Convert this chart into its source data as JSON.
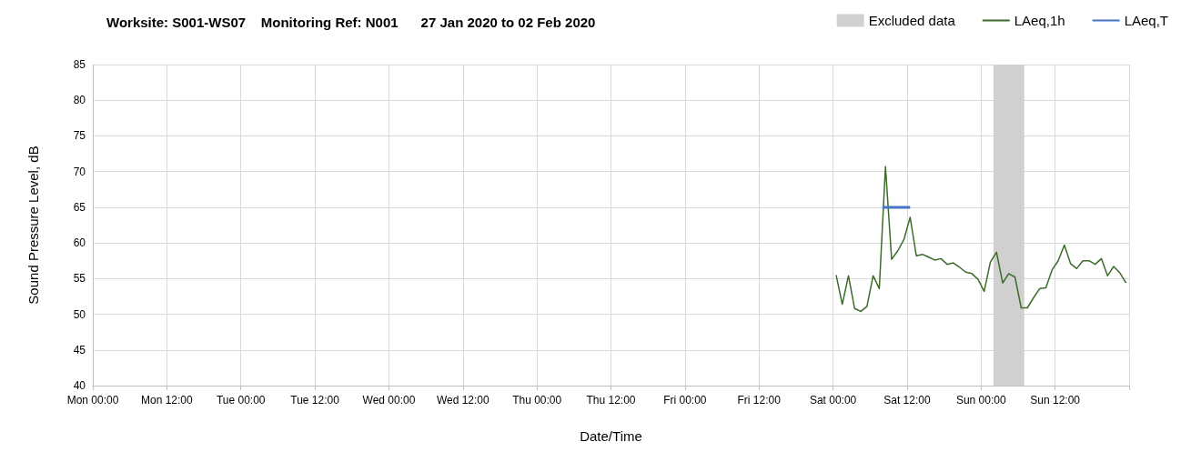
{
  "chart_data": {
    "type": "line",
    "title": "Worksite: S001-WS07    Monitoring Ref: N001      27 Jan 2020 to 02 Feb 2020",
    "xlabel": "Date/Time",
    "ylabel": "Sound Pressure Level, dB",
    "xlim": [
      "2020-01-27T00:00",
      "2020-02-03T00:00"
    ],
    "ylim": [
      40,
      85
    ],
    "xticks": [
      {
        "value": "2020-01-27T00:00",
        "label": "Mon 00:00"
      },
      {
        "value": "2020-01-27T12:00",
        "label": "Mon 12:00"
      },
      {
        "value": "2020-01-28T00:00",
        "label": "Tue 00:00"
      },
      {
        "value": "2020-01-28T12:00",
        "label": "Tue 12:00"
      },
      {
        "value": "2020-01-29T00:00",
        "label": "Wed 00:00"
      },
      {
        "value": "2020-01-29T12:00",
        "label": "Wed 12:00"
      },
      {
        "value": "2020-01-30T00:00",
        "label": "Thu 00:00"
      },
      {
        "value": "2020-01-30T12:00",
        "label": "Thu 12:00"
      },
      {
        "value": "2020-01-31T00:00",
        "label": "Fri 00:00"
      },
      {
        "value": "2020-01-31T12:00",
        "label": "Fri 12:00"
      },
      {
        "value": "2020-02-01T00:00",
        "label": "Sat 00:00"
      },
      {
        "value": "2020-02-01T12:00",
        "label": "Sat 12:00"
      },
      {
        "value": "2020-02-02T00:00",
        "label": "Sun 00:00"
      },
      {
        "value": "2020-02-02T12:00",
        "label": "Sun 12:00"
      },
      {
        "value": "2020-02-03T00:00",
        "label": null
      }
    ],
    "yticks": [
      40,
      45,
      50,
      55,
      60,
      65,
      70,
      75,
      80,
      85
    ],
    "grid": true,
    "legend": "top right",
    "marker": "none",
    "line_style": "solid",
    "bands": [
      {
        "axis": "x",
        "from": "2020-02-02T02:00",
        "to": "2020-02-02T07:00",
        "label": "Excluded data",
        "color": "#d0d0d0"
      }
    ],
    "series": [
      {
        "name": "LAeq,1h",
        "color": "#3d6b2a",
        "x": [
          "2020-02-01T00:30",
          "2020-02-01T01:30",
          "2020-02-01T02:30",
          "2020-02-01T03:30",
          "2020-02-01T04:30",
          "2020-02-01T05:30",
          "2020-02-01T06:30",
          "2020-02-01T07:30",
          "2020-02-01T08:30",
          "2020-02-01T09:30",
          "2020-02-01T10:30",
          "2020-02-01T11:30",
          "2020-02-01T12:30",
          "2020-02-01T13:30",
          "2020-02-01T14:30",
          "2020-02-01T15:30",
          "2020-02-01T16:30",
          "2020-02-01T17:30",
          "2020-02-01T18:30",
          "2020-02-01T19:30",
          "2020-02-01T20:30",
          "2020-02-01T21:30",
          "2020-02-01T22:30",
          "2020-02-01T23:30",
          "2020-02-02T00:30",
          "2020-02-02T01:30",
          "2020-02-02T02:30",
          "2020-02-02T03:30",
          "2020-02-02T04:30",
          "2020-02-02T05:30",
          "2020-02-02T06:30",
          "2020-02-02T07:30",
          "2020-02-02T08:30",
          "2020-02-02T09:30",
          "2020-02-02T10:30",
          "2020-02-02T11:30",
          "2020-02-02T12:30",
          "2020-02-02T13:30",
          "2020-02-02T14:30",
          "2020-02-02T15:30",
          "2020-02-02T16:30",
          "2020-02-02T17:30",
          "2020-02-02T18:30",
          "2020-02-02T19:30",
          "2020-02-02T20:30",
          "2020-02-02T21:30",
          "2020-02-02T22:30",
          "2020-02-02T23:30"
        ],
        "values": [
          55.5,
          51.4,
          55.4,
          50.8,
          50.4,
          51.1,
          55.4,
          53.6,
          70.7,
          57.7,
          58.9,
          60.5,
          63.6,
          58.2,
          58.4,
          58.0,
          57.6,
          57.8,
          57.0,
          57.2,
          56.6,
          55.9,
          55.7,
          54.9,
          53.2,
          57.3,
          58.7,
          54.4,
          55.7,
          55.2,
          50.9,
          50.9,
          52.3,
          53.6,
          53.7,
          56.2,
          57.5,
          59.7,
          57.1,
          56.4,
          57.5,
          57.5,
          57.0,
          57.8,
          55.4,
          56.7,
          55.8,
          54.4
        ]
      },
      {
        "name": "LAeq,T",
        "color": "#4472c4",
        "x": [
          "2020-02-01T08:00",
          "2020-02-01T12:30"
        ],
        "values": [
          65,
          65
        ]
      }
    ]
  }
}
